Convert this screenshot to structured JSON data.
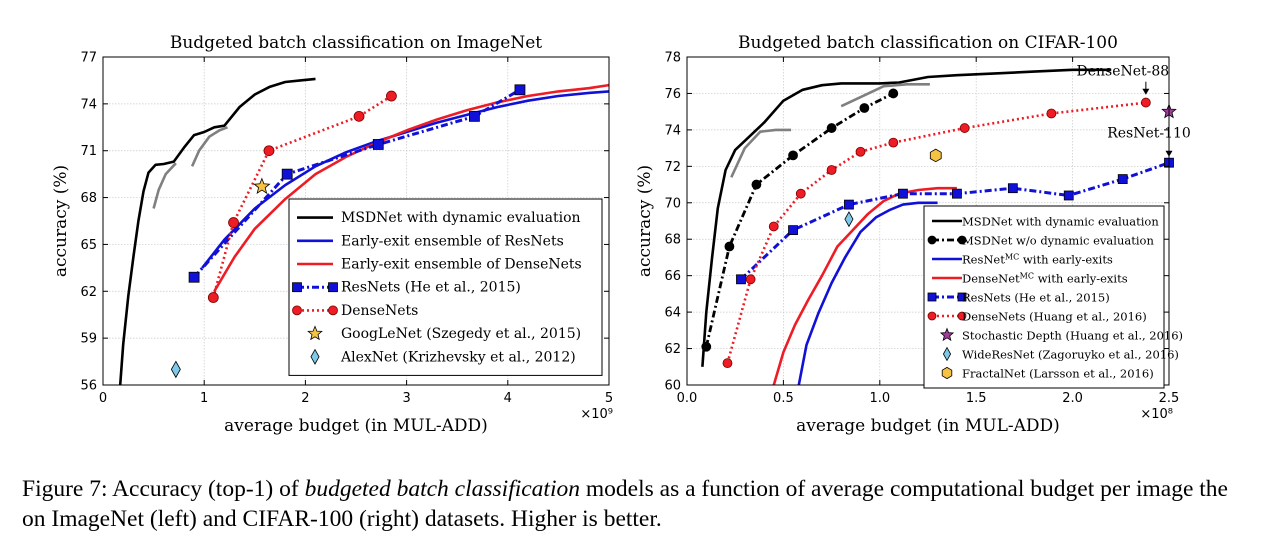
{
  "caption": {
    "prefix": "Figure 7:  Accuracy (top-1) of ",
    "emph": "budgeted batch classification",
    "suffix": " models as a function of average computational budget per image the on ImageNet (left) and CIFAR-100 (right) datasets. Higher is better."
  },
  "chart_data": [
    {
      "type": "line",
      "title": "Budgeted batch classification on ImageNet",
      "xlabel": "average budget (in MUL-ADD)",
      "ylabel": "accuracy (%)",
      "x_multiplier": "×10⁹",
      "xlim": [
        0,
        5
      ],
      "ylim": [
        56,
        77
      ],
      "xticks": [
        0,
        1,
        2,
        3,
        4,
        5
      ],
      "yticks": [
        56,
        59,
        62,
        65,
        68,
        71,
        74,
        77
      ],
      "grid": true,
      "legend_position": "lower-right",
      "colors": {
        "msdnet": "#000000",
        "resnet": "#1010d8",
        "densenet": "#ee1c24",
        "segment": "#808080",
        "googlenet": "#f6c244",
        "alexnet": "#7ec9ea"
      },
      "series": [
        {
          "name": "MSDNet with dynamic evaluation",
          "style": "solid",
          "color": "#000000",
          "x": [
            0.17,
            0.2,
            0.25,
            0.3,
            0.35,
            0.4,
            0.45,
            0.52,
            0.6,
            0.7,
            0.8,
            0.9,
            1.0,
            1.1,
            1.2,
            1.35,
            1.5,
            1.65,
            1.8,
            1.95,
            2.1
          ],
          "y": [
            56,
            58.6,
            61.7,
            64.2,
            66.5,
            68.4,
            69.6,
            70.1,
            70.15,
            70.3,
            71.2,
            72.0,
            72.2,
            72.5,
            72.6,
            73.8,
            74.6,
            75.1,
            75.4,
            75.5,
            75.6
          ]
        },
        {
          "name": "",
          "style": "segment",
          "color": "#808080",
          "x": [
            0.5,
            0.55,
            0.62,
            0.72
          ],
          "y": [
            67.3,
            68.5,
            69.5,
            70.2
          ]
        },
        {
          "name": "",
          "style": "segment",
          "color": "#808080",
          "x": [
            0.88,
            0.95,
            1.05,
            1.15,
            1.23
          ],
          "y": [
            70.0,
            71.0,
            71.9,
            72.3,
            72.5
          ]
        },
        {
          "name": "Early-exit ensemble of ResNets",
          "style": "solid",
          "color": "#1010d8",
          "x": [
            0.98,
            1.2,
            1.5,
            1.8,
            2.1,
            2.4,
            2.7,
            3.0,
            3.3,
            3.6,
            3.9,
            4.2,
            4.5,
            4.8,
            5.0
          ],
          "y": [
            63.5,
            65.3,
            67.3,
            68.8,
            70.0,
            70.9,
            71.6,
            72.2,
            72.8,
            73.3,
            73.8,
            74.2,
            74.5,
            74.7,
            74.8
          ]
        },
        {
          "name": "Early-exit ensemble of DenseNets",
          "style": "solid",
          "color": "#ee1c24",
          "x": [
            1.1,
            1.3,
            1.5,
            1.8,
            2.1,
            2.4,
            2.7,
            3.0,
            3.3,
            3.6,
            3.9,
            4.2,
            4.5,
            4.8,
            5.0
          ],
          "y": [
            62.0,
            64.2,
            66.0,
            67.9,
            69.5,
            70.6,
            71.5,
            72.3,
            73.0,
            73.6,
            74.1,
            74.5,
            74.8,
            75.0,
            75.2
          ]
        },
        {
          "name": "ResNets (He et al., 2015)",
          "style": "dash-dot-square",
          "color": "#1010d8",
          "x": [
            0.9,
            1.82,
            2.72,
            3.67,
            4.12
          ],
          "y": [
            62.9,
            69.5,
            71.4,
            73.2,
            74.9
          ]
        },
        {
          "name": "DenseNets",
          "style": "dotted-circle",
          "color": "#ee1c24",
          "x": [
            1.09,
            1.29,
            1.64,
            2.53,
            2.85
          ],
          "y": [
            61.6,
            66.4,
            71.0,
            73.2,
            74.5
          ]
        },
        {
          "name": "GoogLeNet (Szegedy et al., 2015)",
          "style": "star",
          "color": "#f6c244",
          "x": [
            1.57
          ],
          "y": [
            68.7
          ]
        },
        {
          "name": "AlexNet (Krizhevsky et al., 2012)",
          "style": "diamond",
          "color": "#7ec9ea",
          "x": [
            0.72
          ],
          "y": [
            57.0
          ]
        }
      ]
    },
    {
      "type": "line",
      "title": "Budgeted batch classification on CIFAR-100",
      "xlabel": "average budget (in MUL-ADD)",
      "ylabel": "accuracy (%)",
      "x_multiplier": "×10⁸",
      "xlim": [
        0,
        2.5
      ],
      "ylim": [
        60,
        78
      ],
      "xticks": [
        0.0,
        0.5,
        1.0,
        1.5,
        2.0,
        2.5
      ],
      "xtick_labels": [
        "0.0",
        "0.5",
        "1.0",
        "1.5",
        "2.0",
        "2.5"
      ],
      "yticks": [
        60,
        62,
        64,
        66,
        68,
        70,
        72,
        74,
        76,
        78
      ],
      "grid": true,
      "legend_position": "lower-right",
      "annotations": [
        {
          "text": "DenseNet-88",
          "x": 2.38,
          "y": 75.6
        },
        {
          "text": "ResNet-110",
          "x": 2.5,
          "y": 72.2
        }
      ],
      "series": [
        {
          "name": "MSDNet with dynamic evaluation",
          "style": "solid",
          "color": "#000000",
          "x": [
            0.08,
            0.1,
            0.13,
            0.16,
            0.2,
            0.25,
            0.32,
            0.4,
            0.5,
            0.6,
            0.7,
            0.8,
            0.9,
            1.0,
            1.1,
            1.25,
            1.4,
            1.6,
            1.8,
            2.0,
            2.2
          ],
          "y": [
            61.0,
            64.0,
            67.0,
            69.7,
            71.8,
            72.9,
            73.6,
            74.4,
            75.6,
            76.2,
            76.45,
            76.55,
            76.55,
            76.55,
            76.6,
            76.9,
            77.0,
            77.1,
            77.2,
            77.3,
            77.3
          ]
        },
        {
          "name": "",
          "style": "segment",
          "color": "#808080",
          "x": [
            0.23,
            0.3,
            0.38,
            0.46,
            0.54
          ],
          "y": [
            71.4,
            73.0,
            73.9,
            74.0,
            74.0
          ]
        },
        {
          "name": "",
          "style": "segment",
          "color": "#808080",
          "x": [
            0.8,
            0.92,
            1.02,
            1.14,
            1.26
          ],
          "y": [
            75.3,
            75.9,
            76.4,
            76.5,
            76.5
          ]
        },
        {
          "name": "MSDNet w/o dynamic evaluation",
          "style": "dash-dot-circle",
          "color": "#000000",
          "x": [
            0.1,
            0.22,
            0.36,
            0.55,
            0.75,
            0.92,
            1.07
          ],
          "y": [
            62.1,
            67.6,
            71.0,
            72.6,
            74.1,
            75.2,
            76.0
          ]
        },
        {
          "name": "ResNet<sup>MC</sup> with early-exits",
          "style": "solid",
          "color": "#1010d8",
          "x": [
            0.58,
            0.62,
            0.68,
            0.75,
            0.82,
            0.9,
            0.98,
            1.05,
            1.12,
            1.2,
            1.3
          ],
          "y": [
            60.0,
            62.2,
            63.9,
            65.6,
            67.0,
            68.4,
            69.2,
            69.6,
            69.9,
            70.0,
            70.0
          ]
        },
        {
          "name": "DenseNet<sup>MC</sup> with early-exits",
          "style": "solid",
          "color": "#ee1c24",
          "x": [
            0.45,
            0.5,
            0.56,
            0.63,
            0.7,
            0.78,
            0.86,
            0.94,
            1.02,
            1.1,
            1.2,
            1.3,
            1.4
          ],
          "y": [
            60.0,
            61.8,
            63.3,
            64.7,
            66.0,
            67.6,
            68.5,
            69.4,
            70.1,
            70.5,
            70.7,
            70.8,
            70.8
          ]
        },
        {
          "name": "ResNets (He et al., 2015)",
          "style": "dash-dot-square",
          "color": "#1010d8",
          "x": [
            0.28,
            0.55,
            0.84,
            1.12,
            1.4,
            1.69,
            1.98,
            2.26,
            2.5
          ],
          "y": [
            65.8,
            68.5,
            69.9,
            70.5,
            70.5,
            70.8,
            70.4,
            71.3,
            72.2
          ]
        },
        {
          "name": "DenseNets (Huang et al., 2016)",
          "style": "dotted-circle",
          "color": "#ee1c24",
          "x": [
            0.21,
            0.33,
            0.45,
            0.59,
            0.75,
            0.9,
            1.07,
            1.44,
            1.89,
            2.38
          ],
          "y": [
            61.2,
            65.8,
            68.7,
            70.5,
            71.8,
            72.8,
            73.3,
            74.1,
            74.9,
            75.5
          ]
        },
        {
          "name": "Stochastic Depth (Huang et al., 2016)",
          "style": "star",
          "color": "#a43c9f",
          "x": [
            2.5
          ],
          "y": [
            75.0
          ]
        },
        {
          "name": "WideResNet (Zagoruyko et al., 2016)",
          "style": "diamond",
          "color": "#7ec9ea",
          "x": [
            0.84
          ],
          "y": [
            69.1
          ]
        },
        {
          "name": "FractalNet (Larsson et al., 2016)",
          "style": "hexagon",
          "color": "#f6c244",
          "x": [
            1.29
          ],
          "y": [
            72.6
          ]
        }
      ]
    }
  ]
}
